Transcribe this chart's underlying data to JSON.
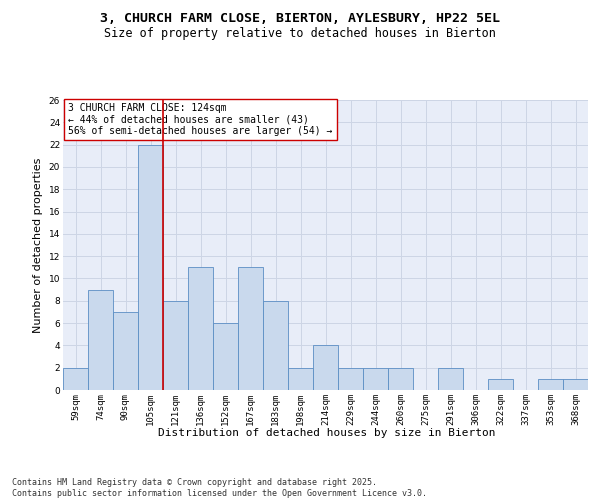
{
  "title1": "3, CHURCH FARM CLOSE, BIERTON, AYLESBURY, HP22 5EL",
  "title2": "Size of property relative to detached houses in Bierton",
  "xlabel": "Distribution of detached houses by size in Bierton",
  "ylabel": "Number of detached properties",
  "bins": [
    "59sqm",
    "74sqm",
    "90sqm",
    "105sqm",
    "121sqm",
    "136sqm",
    "152sqm",
    "167sqm",
    "183sqm",
    "198sqm",
    "214sqm",
    "229sqm",
    "244sqm",
    "260sqm",
    "275sqm",
    "291sqm",
    "306sqm",
    "322sqm",
    "337sqm",
    "353sqm",
    "368sqm"
  ],
  "values": [
    2,
    9,
    7,
    22,
    8,
    11,
    6,
    11,
    8,
    2,
    4,
    2,
    2,
    2,
    0,
    2,
    0,
    1,
    0,
    1,
    1
  ],
  "bar_color": "#c9d9ed",
  "bar_edge_color": "#5b8ec4",
  "vline_position": 3.5,
  "vline_color": "#cc0000",
  "annotation_text": "3 CHURCH FARM CLOSE: 124sqm\n← 44% of detached houses are smaller (43)\n56% of semi-detached houses are larger (54) →",
  "annotation_box_color": "#ffffff",
  "annotation_box_edge": "#cc0000",
  "ylim": [
    0,
    26
  ],
  "yticks": [
    0,
    2,
    4,
    6,
    8,
    10,
    12,
    14,
    16,
    18,
    20,
    22,
    24,
    26
  ],
  "grid_color": "#cdd5e5",
  "bg_color": "#e8edf8",
  "footer": "Contains HM Land Registry data © Crown copyright and database right 2025.\nContains public sector information licensed under the Open Government Licence v3.0.",
  "title_fontsize": 9.5,
  "subtitle_fontsize": 8.5,
  "tick_fontsize": 6.5,
  "label_fontsize": 8,
  "annotation_fontsize": 7,
  "footer_fontsize": 6
}
